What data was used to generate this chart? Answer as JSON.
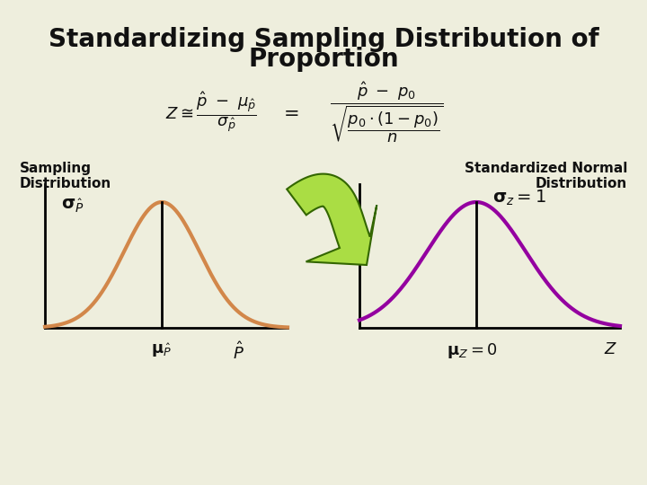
{
  "title_line1": "Standardizing Sampling Distribution of",
  "title_line2": "Proportion",
  "bg_color": "#eeeedd",
  "title_color": "#111111",
  "title_fontsize": 20,
  "formula_color": "#111111",
  "orange_curve_color": "#d2874a",
  "orange_curve_lw": 3.0,
  "purple_curve_color": "#9400a0",
  "purple_curve_lw": 3.0,
  "arrow_fill_color": "#aadd44",
  "arrow_edge_color": "#336600",
  "axes_lw": 2.0,
  "sampling_label": "Sampling\nDistribution",
  "normal_label": "Standardized Normal\nDistribution",
  "sigma_p_label": "$\\mathbf{\\sigma}_{\\hat{P}}$",
  "sigma_z_label": "$\\mathbf{\\sigma}_z = 1$",
  "mu_p_label": "$\\mathbf{\\mu}_{\\hat{P}}$",
  "p_hat_label": "$\\hat{P}$",
  "mu_z_label": "$\\mathbf{\\mu}_Z= 0$",
  "z_label": "$Z$"
}
